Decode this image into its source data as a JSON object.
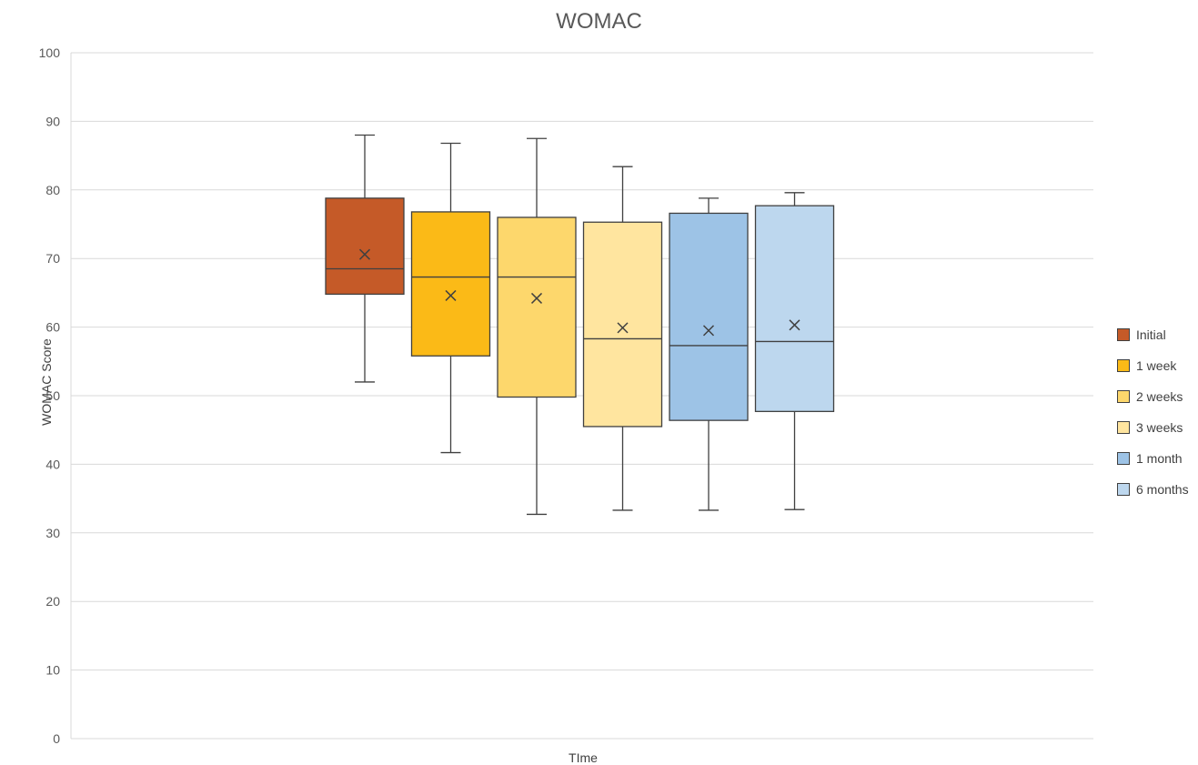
{
  "chart_data": {
    "type": "box",
    "title": "WOMAC",
    "xlabel": "TIme",
    "ylabel": "WOMAC Score",
    "ylim": [
      0,
      100
    ],
    "yticks": [
      0,
      10,
      20,
      30,
      40,
      50,
      60,
      70,
      80,
      90,
      100
    ],
    "grid": true,
    "legend_position": "right",
    "series": [
      {
        "name": "Initial",
        "color": "#C55A28",
        "min": 52.0,
        "q1": 64.8,
        "median": 68.5,
        "q3": 78.8,
        "max": 88.0,
        "mean": 70.6
      },
      {
        "name": "1 week",
        "color": "#FBBA17",
        "min": 41.7,
        "q1": 55.8,
        "median": 67.3,
        "q3": 76.8,
        "max": 86.8,
        "mean": 64.6
      },
      {
        "name": "2 weeks",
        "color": "#FDD76C",
        "min": 32.7,
        "q1": 49.8,
        "median": 67.3,
        "q3": 76.0,
        "max": 87.5,
        "mean": 64.2
      },
      {
        "name": "3 weeks",
        "color": "#FFE59F",
        "min": 33.3,
        "q1": 45.5,
        "median": 58.3,
        "q3": 75.3,
        "max": 83.4,
        "mean": 59.9
      },
      {
        "name": "1 month",
        "color": "#9DC3E6",
        "min": 33.3,
        "q1": 46.4,
        "median": 57.3,
        "q3": 76.6,
        "max": 78.8,
        "mean": 59.5
      },
      {
        "name": "6 months",
        "color": "#BDD7EE",
        "min": 33.4,
        "q1": 47.7,
        "median": 57.9,
        "q3": 77.7,
        "max": 79.6,
        "mean": 60.3
      }
    ]
  }
}
